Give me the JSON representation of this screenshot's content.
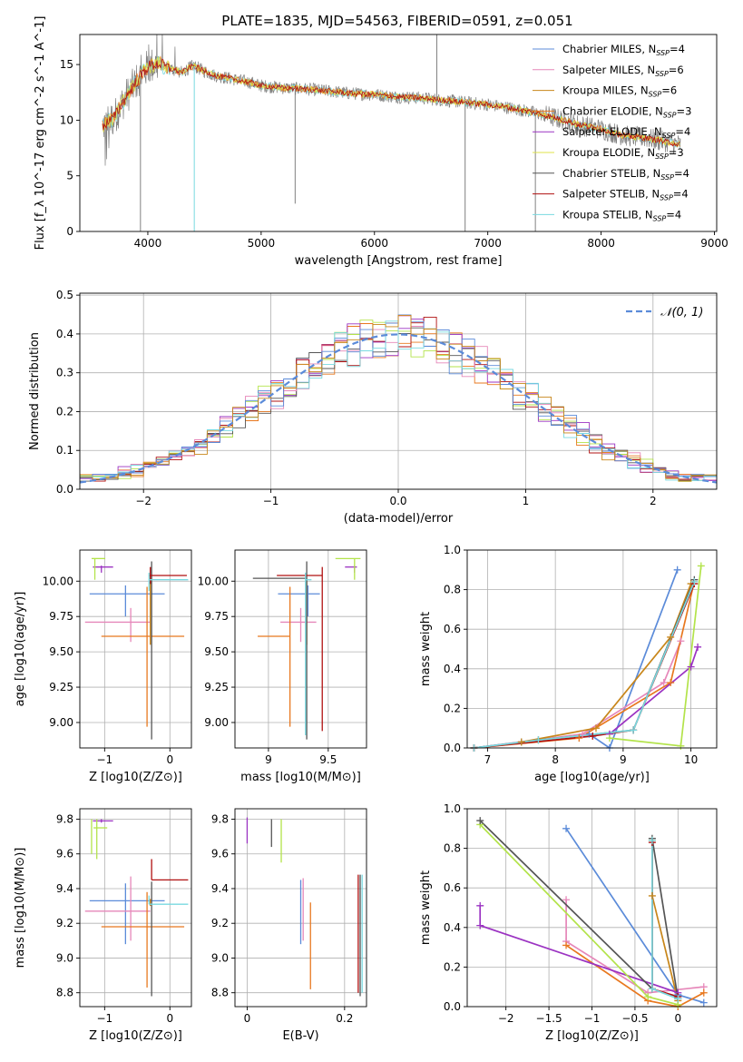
{
  "figure_title": "PLATE=1835, MJD=54563, FIBERID=0591, z=0.051",
  "colors": {
    "Chabrier MILES": "#5b8bd9",
    "Salpeter MILES": "#e687b9",
    "Kroupa MILES": "#c8861a",
    "Chabrier ELODIE": "#e8781f",
    "Salpeter ELODIE": "#9b33c2",
    "Kroupa ELODIE": "#dfe34a",
    "Chabrier STELIB": "#555555",
    "Salpeter STELIB": "#b01010",
    "Kroupa STELIB": "#78d9e0",
    "kroupa_elodie_line": "#b3e34a",
    "data": "#808080",
    "gauss": "#5b8bd9"
  },
  "chart_data": [
    {
      "type": "line",
      "id": "spectrum",
      "xlabel": "wavelength [Angstrom, rest frame]",
      "ylabel": "Flux [f_λ 10^-17 erg cm^-2 s^-1 A^-1]",
      "xlim": [
        3400,
        9020
      ],
      "ylim": [
        0,
        17.7
      ],
      "xticks": [
        4000,
        5000,
        6000,
        7000,
        8000,
        9000
      ],
      "yticks": [
        0,
        5,
        10,
        15
      ],
      "legend_position": "upper right",
      "legend": [
        {
          "name": "Chabrier MILES",
          "nssp": "4"
        },
        {
          "name": "Salpeter MILES",
          "nssp": "6"
        },
        {
          "name": "Kroupa MILES",
          "nssp": "6"
        },
        {
          "name": "Chabrier ELODIE",
          "nssp": "3"
        },
        {
          "name": "Salpeter ELODIE",
          "nssp": "4"
        },
        {
          "name": "Kroupa ELODIE",
          "nssp": "3"
        },
        {
          "name": "Chabrier STELIB",
          "nssp": "4"
        },
        {
          "name": "Salpeter STELIB",
          "nssp": "4"
        },
        {
          "name": "Kroupa STELIB",
          "nssp": "4"
        }
      ],
      "continuum": {
        "wavelength": [
          3600,
          3700,
          3800,
          3900,
          4000,
          4100,
          4200,
          4300,
          4400,
          4500,
          4600,
          4700,
          4800,
          4900,
          5000,
          5200,
          5400,
          5600,
          5800,
          6000,
          6200,
          6400,
          6600,
          6800,
          7000,
          7200,
          7400,
          7600,
          7800,
          8000,
          8200,
          8400,
          8600,
          8700
        ],
        "flux": [
          9.5,
          10.2,
          12.0,
          13.5,
          14.8,
          15.1,
          14.6,
          14.3,
          14.9,
          14.4,
          14.0,
          13.8,
          13.6,
          13.4,
          13.1,
          12.9,
          12.8,
          12.6,
          12.4,
          12.3,
          12.1,
          12.0,
          11.8,
          11.6,
          11.4,
          11.1,
          10.7,
          10.2,
          9.6,
          9.2,
          8.6,
          8.4,
          8.0,
          7.8
        ]
      },
      "noise_amplitude": 0.6,
      "spikes": [
        {
          "x": 3935,
          "y": 0
        },
        {
          "x": 4410,
          "y": 0
        },
        {
          "x": 5300,
          "y": 2.5
        },
        {
          "x": 6800,
          "y": 0
        },
        {
          "x": 7420,
          "y": 0
        },
        {
          "x": 6550,
          "y": 17.7
        }
      ]
    },
    {
      "type": "step",
      "id": "residuals",
      "xlabel": "(data-model)/error",
      "ylabel": "Normed distribution",
      "xlim": [
        -2.5,
        2.5
      ],
      "ylim": [
        0,
        0.505
      ],
      "xticks": [
        -2,
        -1,
        0,
        1,
        2
      ],
      "yticks": [
        0.0,
        0.1,
        0.2,
        0.3,
        0.4,
        0.5
      ],
      "legend": "𝒩(0, 1)",
      "bin_width": 0.1,
      "bin_edges_start": -2.5
    },
    {
      "type": "errorbar",
      "id": "age_vs_Z",
      "xlabel": "Z [log10(Z/Z⊙)]",
      "ylabel": "age  [log10(age/yr)]",
      "xlim": [
        -1.38,
        0.33
      ],
      "ylim": [
        8.82,
        10.22
      ],
      "xticks": [
        -1,
        0
      ],
      "yticks": [
        9.0,
        9.25,
        9.5,
        9.75,
        10.0
      ],
      "points": [
        {
          "series": "Chabrier MILES",
          "x": -0.68,
          "xerr": [
            0.55,
            0.6
          ],
          "y": 9.91,
          "yerr": [
            0.16,
            0.06
          ]
        },
        {
          "series": "Salpeter MILES",
          "x": -0.6,
          "xerr": [
            0.7,
            0.3
          ],
          "y": 9.71,
          "yerr": [
            0.14,
            0.1
          ]
        },
        {
          "series": "Kroupa MILES",
          "x": -0.3,
          "xerr": [
            0.0,
            0.0
          ],
          "y": 9.95,
          "yerr": [
            0.4,
            0.05
          ]
        },
        {
          "series": "Chabrier ELODIE",
          "x": -0.35,
          "xerr": [
            0.7,
            0.57
          ],
          "y": 9.61,
          "yerr": [
            0.64,
            0.35
          ]
        },
        {
          "series": "Salpeter ELODIE",
          "x": -1.05,
          "xerr": [
            0.13,
            0.18
          ],
          "y": 10.1,
          "yerr": [
            0.04,
            0.01
          ]
        },
        {
          "series": "Kroupa ELODIE",
          "x": -1.15,
          "xerr": [
            0.05,
            0.16
          ],
          "y": 10.16,
          "yerr": [
            0.15,
            0.0
          ]
        },
        {
          "series": "Chabrier STELIB",
          "x": -0.28,
          "xerr": [
            0.0,
            0.0
          ],
          "y": 10.02,
          "yerr": [
            1.14,
            0.12
          ]
        },
        {
          "series": "Salpeter STELIB",
          "x": -0.3,
          "xerr": [
            0.02,
            0.56
          ],
          "y": 10.04,
          "yerr": [
            0.06,
            0.06
          ]
        },
        {
          "series": "Kroupa STELIB",
          "x": -0.32,
          "xerr": [
            0.0,
            0.6
          ],
          "y": 10.01,
          "yerr": [
            0.08,
            0.05
          ]
        }
      ]
    },
    {
      "type": "errorbar",
      "id": "age_vs_mass",
      "xlabel": "mass [log10(M/M⊙)]",
      "ylabel": "",
      "xlim": [
        8.72,
        9.82
      ],
      "ylim": [
        8.82,
        10.22
      ],
      "xticks": [
        9.0,
        9.5
      ],
      "yticks": [
        9.0,
        9.25,
        9.5,
        9.75,
        10.0
      ],
      "points": [
        {
          "series": "Chabrier MILES",
          "x": 9.33,
          "xerr": [
            0.25,
            0.1
          ],
          "y": 9.91,
          "yerr": [
            0.16,
            0.06
          ]
        },
        {
          "series": "Salpeter MILES",
          "x": 9.27,
          "xerr": [
            0.17,
            0.13
          ],
          "y": 9.71,
          "yerr": [
            0.14,
            0.1
          ]
        },
        {
          "series": "Kroupa MILES",
          "x": 9.32,
          "xerr": [
            0.0,
            0.0
          ],
          "y": 9.95,
          "yerr": [
            0.4,
            0.05
          ]
        },
        {
          "series": "Chabrier ELODIE",
          "x": 9.18,
          "xerr": [
            0.27,
            0.0
          ],
          "y": 9.61,
          "yerr": [
            0.64,
            0.35
          ]
        },
        {
          "series": "Salpeter ELODIE",
          "x": 9.72,
          "xerr": [
            0.08,
            0.02
          ],
          "y": 10.1,
          "yerr": [
            0.04,
            0.01
          ]
        },
        {
          "series": "Kroupa ELODIE",
          "x": 9.72,
          "xerr": [
            0.16,
            0.05
          ],
          "y": 10.16,
          "yerr": [
            0.15,
            0.0
          ]
        },
        {
          "series": "Chabrier STELIB",
          "x": 9.32,
          "xerr": [
            0.45,
            0.0
          ],
          "y": 10.02,
          "yerr": [
            1.14,
            0.12
          ]
        },
        {
          "series": "Salpeter STELIB",
          "x": 9.45,
          "xerr": [
            0.38,
            0.0
          ],
          "y": 10.04,
          "yerr": [
            1.1,
            0.06
          ]
        },
        {
          "series": "Kroupa STELIB",
          "x": 9.31,
          "xerr": [
            0.0,
            0.05
          ],
          "y": 10.01,
          "yerr": [
            1.1,
            0.05
          ]
        }
      ]
    },
    {
      "type": "line",
      "id": "mass_weight_vs_age",
      "xlabel": "age  [log10(age/yr)]",
      "ylabel": "mass weight",
      "xlim": [
        6.7,
        10.38
      ],
      "ylim": [
        0,
        1.0
      ],
      "xticks": [
        7,
        8,
        9,
        10
      ],
      "yticks": [
        0.0,
        0.2,
        0.4,
        0.6,
        0.8,
        1.0
      ],
      "series": [
        {
          "name": "Chabrier MILES",
          "x": [
            6.8,
            7.5,
            8.5,
            8.8,
            9.8
          ],
          "y": [
            0.0,
            0.03,
            0.07,
            0.0,
            0.9
          ]
        },
        {
          "name": "Salpeter MILES",
          "x": [
            6.8,
            8.4,
            9.6,
            9.85
          ],
          "y": [
            0.0,
            0.07,
            0.33,
            0.54
          ]
        },
        {
          "name": "Kroupa MILES",
          "x": [
            7.5,
            8.6,
            9.7,
            10.0
          ],
          "y": [
            0.03,
            0.1,
            0.56,
            0.83
          ]
        },
        {
          "name": "Chabrier ELODIE",
          "x": [
            6.8,
            8.35,
            9.7,
            10.05
          ],
          "y": [
            0.0,
            0.05,
            0.33,
            0.84
          ]
        },
        {
          "name": "Salpeter ELODIE",
          "x": [
            8.8,
            10.0,
            10.1
          ],
          "y": [
            0.07,
            0.41,
            0.51
          ]
        },
        {
          "name": "Kroupa ELODIE",
          "x": [
            8.8,
            9.85,
            10.15
          ],
          "y": [
            0.05,
            0.01,
            0.92
          ]
        },
        {
          "name": "Chabrier STELIB",
          "x": [
            6.8,
            7.75,
            9.15,
            10.05
          ],
          "y": [
            0.0,
            0.04,
            0.09,
            0.85
          ]
        },
        {
          "name": "Salpeter STELIB",
          "x": [
            6.8,
            8.55,
            9.15,
            10.05
          ],
          "y": [
            0.0,
            0.06,
            0.09,
            0.83
          ]
        },
        {
          "name": "Kroupa STELIB",
          "x": [
            6.8,
            7.75,
            9.15,
            10.05
          ],
          "y": [
            0.0,
            0.04,
            0.09,
            0.84
          ]
        }
      ]
    },
    {
      "type": "errorbar",
      "id": "mass_vs_Z",
      "xlabel": "Z [log10(Z/Z⊙)]",
      "ylabel": "mass [log10(M/M⊙)]",
      "xlim": [
        -1.38,
        0.33
      ],
      "ylim": [
        8.72,
        9.86
      ],
      "xticks": [
        -1,
        0
      ],
      "yticks": [
        8.8,
        9.0,
        9.2,
        9.4,
        9.6,
        9.8
      ],
      "points": [
        {
          "series": "Chabrier MILES",
          "x": -0.68,
          "xerr": [
            0.55,
            0.6
          ],
          "y": 9.33,
          "yerr": [
            0.25,
            0.1
          ]
        },
        {
          "series": "Salpeter MILES",
          "x": -0.6,
          "xerr": [
            0.7,
            0.3
          ],
          "y": 9.27,
          "yerr": [
            0.17,
            0.2
          ]
        },
        {
          "series": "Kroupa MILES",
          "x": -0.3,
          "xerr": [
            0.0,
            0.0
          ],
          "y": 9.32,
          "yerr": [
            0.02,
            0.02
          ]
        },
        {
          "series": "Chabrier ELODIE",
          "x": -0.35,
          "xerr": [
            0.7,
            0.57
          ],
          "y": 9.18,
          "yerr": [
            0.35,
            0.2
          ]
        },
        {
          "series": "Salpeter ELODIE",
          "x": -1.05,
          "xerr": [
            0.13,
            0.18
          ],
          "y": 9.79,
          "yerr": [
            0.01,
            0.01
          ]
        },
        {
          "series": "Kroupa ELODIE",
          "x": -1.12,
          "xerr": [
            0.05,
            0.16
          ],
          "y": 9.75,
          "yerr": [
            0.18,
            0.05
          ]
        },
        {
          "series": "Chabrier STELIB",
          "x": -0.28,
          "xerr": [
            0.0,
            0.0
          ],
          "y": 9.32,
          "yerr": [
            0.54,
            0.12
          ]
        },
        {
          "series": "Salpeter STELIB",
          "x": -0.28,
          "xerr": [
            0.0,
            0.56
          ],
          "y": 9.45,
          "yerr": [
            0.0,
            0.12
          ]
        },
        {
          "series": "Kroupa STELIB",
          "x": -0.32,
          "xerr": [
            0.0,
            0.6
          ],
          "y": 9.31,
          "yerr": [
            0.0,
            0.05
          ]
        },
        {
          "series": "Kroupa ELODIE",
          "x": -1.2,
          "xerr": [
            0.0,
            0.0
          ],
          "y": 9.72,
          "yerr": [
            0.12,
            0.08
          ]
        }
      ]
    },
    {
      "type": "errorbar",
      "id": "mass_vs_EBV",
      "xlabel": "E(B-V)",
      "ylabel": "",
      "xlim": [
        -0.025,
        0.245
      ],
      "ylim": [
        8.72,
        9.86
      ],
      "xticks": [
        0.0,
        0.2
      ],
      "yticks": [
        8.8,
        9.0,
        9.2,
        9.4,
        9.6,
        9.8
      ],
      "points": [
        {
          "series": "Salpeter ELODIE",
          "x": 0.0,
          "y": 9.79,
          "yerr": [
            0.13,
            0.02
          ]
        },
        {
          "series": "Chabrier STELIB",
          "x": 0.05,
          "y": 9.72,
          "yerr": [
            0.08,
            0.08
          ]
        },
        {
          "series": "Kroupa ELODIE",
          "x": 0.07,
          "y": 9.72,
          "yerr": [
            0.17,
            0.08
          ]
        },
        {
          "series": "Chabrier MILES",
          "x": 0.11,
          "y": 9.25,
          "yerr": [
            0.17,
            0.2
          ]
        },
        {
          "series": "Salpeter MILES",
          "x": 0.115,
          "y": 9.25,
          "yerr": [
            0.15,
            0.21
          ]
        },
        {
          "series": "Chabrier ELODIE",
          "x": 0.13,
          "y": 9.15,
          "yerr": [
            0.33,
            0.17
          ]
        },
        {
          "series": "Salpeter STELIB",
          "x": 0.228,
          "y": 9.3,
          "yerr": [
            0.5,
            0.18
          ]
        },
        {
          "series": "Chabrier STELIB",
          "x": 0.232,
          "y": 9.2,
          "yerr": [
            0.42,
            0.28
          ]
        },
        {
          "series": "Kroupa STELIB",
          "x": 0.236,
          "y": 9.3,
          "yerr": [
            0.5,
            0.18
          ]
        }
      ]
    },
    {
      "type": "line",
      "id": "mass_weight_vs_Z",
      "xlabel": "Z [log10(Z/Z⊙)]",
      "ylabel": "mass weight",
      "xlim": [
        -2.45,
        0.45
      ],
      "ylim": [
        0,
        1.0
      ],
      "xticks": [
        -2.0,
        -1.5,
        -1.0,
        -0.5,
        0.0
      ],
      "yticks": [
        0.0,
        0.2,
        0.4,
        0.6,
        0.8,
        1.0
      ],
      "series": [
        {
          "name": "Chabrier MILES",
          "x": [
            -1.3,
            0.0,
            0.3
          ],
          "y": [
            0.9,
            0.06,
            0.02
          ]
        },
        {
          "name": "Salpeter MILES",
          "x": [
            -1.3,
            -1.3,
            -0.35,
            0.3
          ],
          "y": [
            0.54,
            0.33,
            0.07,
            0.1
          ]
        },
        {
          "name": "Kroupa MILES",
          "x": [
            -0.3,
            -0.3,
            0.0
          ],
          "y": [
            0.84,
            0.56,
            0.03
          ]
        },
        {
          "name": "Chabrier ELODIE",
          "x": [
            -1.3,
            -0.35,
            0.0,
            0.3
          ],
          "y": [
            0.31,
            0.03,
            0.0,
            0.07
          ]
        },
        {
          "name": "Salpeter ELODIE",
          "x": [
            -2.3,
            -2.3,
            0.0
          ],
          "y": [
            0.51,
            0.41,
            0.07
          ]
        },
        {
          "name": "Kroupa ELODIE",
          "x": [
            -2.3,
            -0.35,
            0.0
          ],
          "y": [
            0.92,
            0.05,
            0.01
          ]
        },
        {
          "name": "Chabrier STELIB",
          "x": [
            -2.3,
            -0.3,
            -0.3,
            0.0
          ],
          "y": [
            0.94,
            0.09,
            0.85,
            0.04
          ]
        },
        {
          "name": "Salpeter STELIB",
          "x": [
            -0.3,
            -0.3,
            0.0
          ],
          "y": [
            0.83,
            0.09,
            0.05
          ]
        },
        {
          "name": "Kroupa STELIB",
          "x": [
            -0.3,
            -0.3,
            0.0
          ],
          "y": [
            0.84,
            0.09,
            0.04
          ]
        }
      ]
    }
  ]
}
